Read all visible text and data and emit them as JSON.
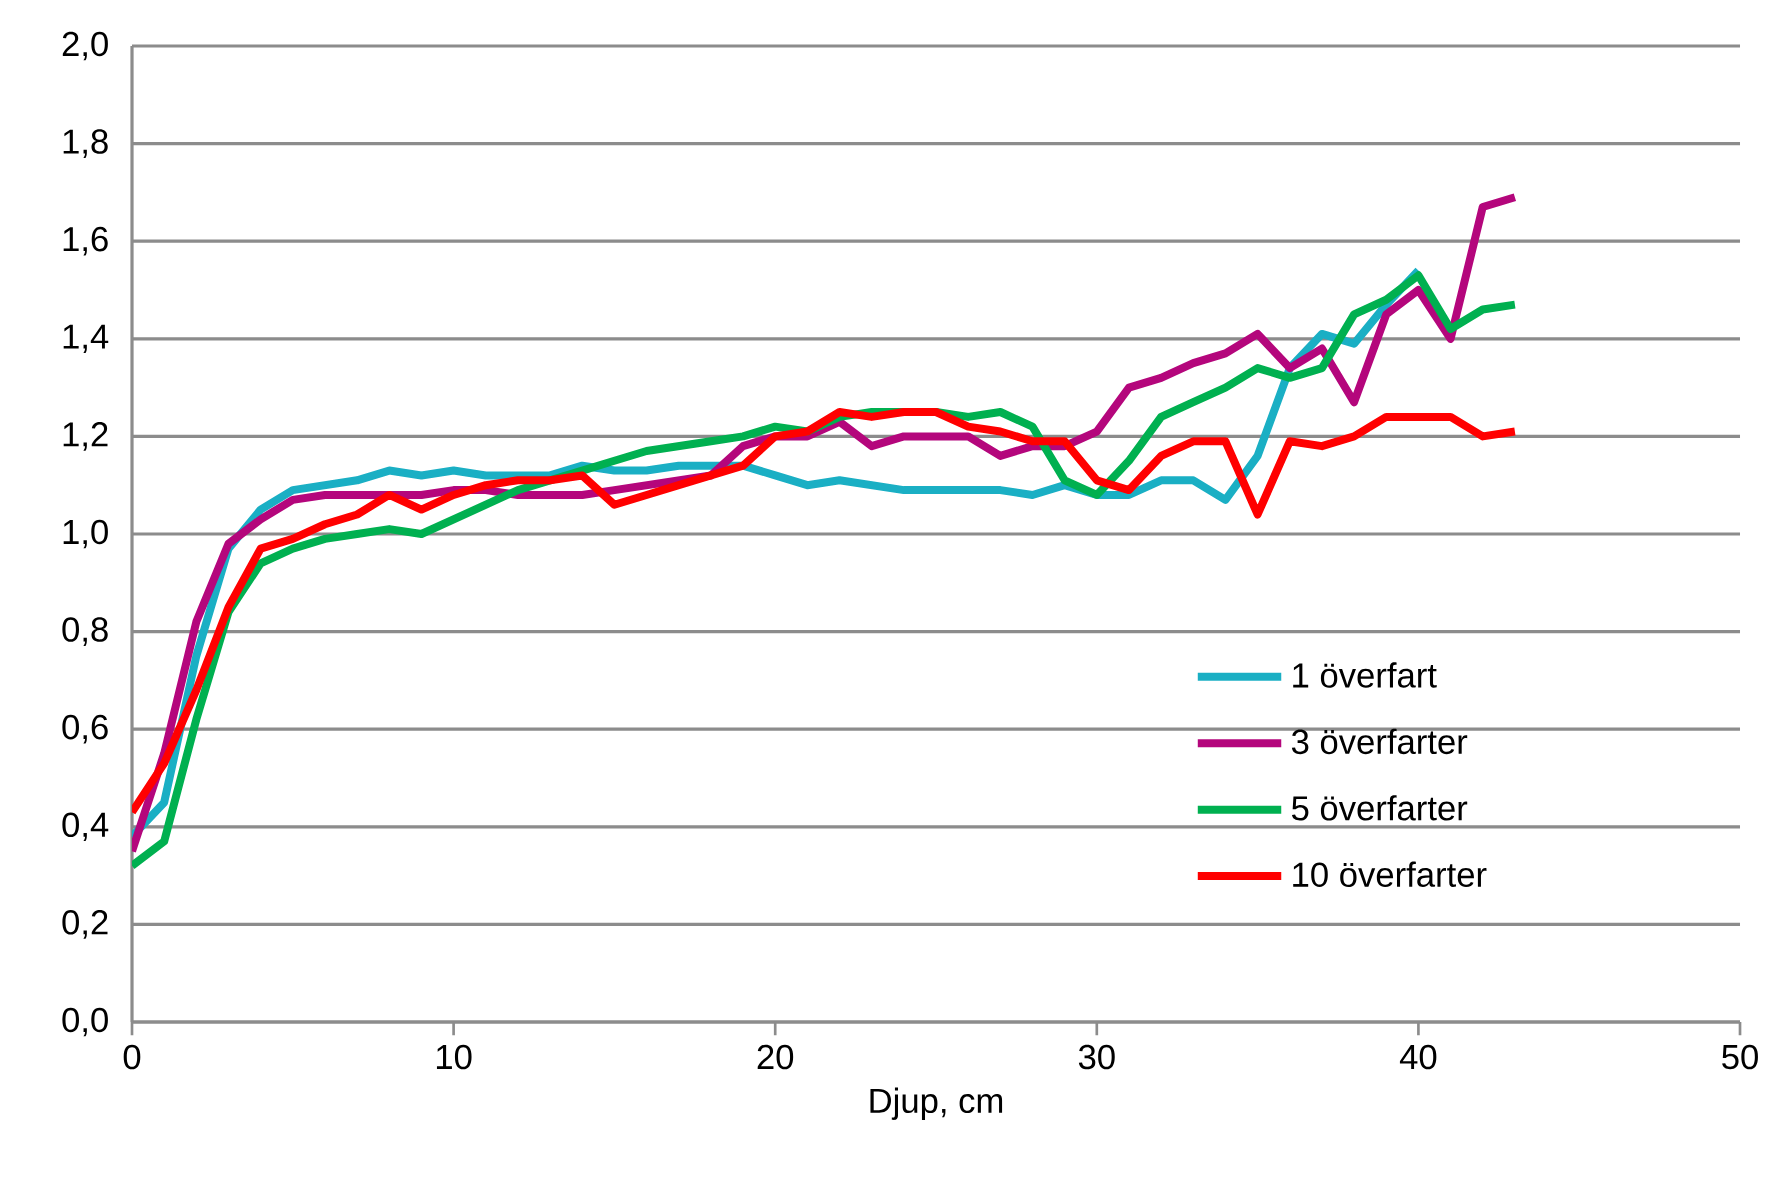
{
  "chart_data": {
    "type": "line",
    "xlabel": "Djup, cm",
    "xlim": [
      0,
      50
    ],
    "xticks": [
      0,
      10,
      20,
      30,
      40,
      50
    ],
    "ylim": [
      0,
      2
    ],
    "yticks": [
      {
        "value": 0,
        "label": "0,0"
      },
      {
        "value": 0.2,
        "label": "0,2"
      },
      {
        "value": 0.4,
        "label": "0,4"
      },
      {
        "value": 0.6,
        "label": "0,6"
      },
      {
        "value": 0.8,
        "label": "0,8"
      },
      {
        "value": 1.0,
        "label": "1,0"
      },
      {
        "value": 1.2,
        "label": "1,2"
      },
      {
        "value": 1.4,
        "label": "1,4"
      },
      {
        "value": 1.6,
        "label": "1,6"
      },
      {
        "value": 1.8,
        "label": "1,8"
      },
      {
        "value": 2.0,
        "label": "2,0"
      }
    ],
    "grid": "y",
    "legend": "right",
    "marker": "none",
    "line_style": "solid",
    "x": [
      0,
      1,
      2,
      3,
      4,
      5,
      6,
      7,
      8,
      9,
      10,
      11,
      12,
      13,
      14,
      15,
      16,
      17,
      18,
      19,
      20,
      21,
      22,
      23,
      24,
      25,
      26,
      27,
      28,
      29,
      30,
      31,
      32,
      33,
      34,
      35,
      36,
      37,
      38,
      39,
      40,
      41,
      42,
      43
    ],
    "series": [
      {
        "name": "1 överfart",
        "color": "#1aafc4",
        "values": [
          0.38,
          0.45,
          0.75,
          0.97,
          1.05,
          1.09,
          1.1,
          1.11,
          1.13,
          1.12,
          1.13,
          1.12,
          1.12,
          1.12,
          1.14,
          1.13,
          1.13,
          1.14,
          1.14,
          1.14,
          1.12,
          1.1,
          1.11,
          1.1,
          1.09,
          1.09,
          1.09,
          1.09,
          1.08,
          1.1,
          1.08,
          1.08,
          1.11,
          1.11,
          1.07,
          1.16,
          1.34,
          1.41,
          1.39,
          1.47,
          1.54,
          null,
          null,
          null
        ]
      },
      {
        "name": "3 överfarter",
        "color": "#b4067c",
        "values": [
          0.35,
          0.55,
          0.82,
          0.98,
          1.03,
          1.07,
          1.08,
          1.08,
          1.08,
          1.08,
          1.09,
          1.09,
          1.08,
          1.08,
          1.08,
          1.09,
          1.1,
          1.11,
          1.12,
          1.18,
          1.2,
          1.2,
          1.23,
          1.18,
          1.2,
          1.2,
          1.2,
          1.16,
          1.18,
          1.18,
          1.21,
          1.3,
          1.32,
          1.35,
          1.37,
          1.41,
          1.34,
          1.38,
          1.27,
          1.45,
          1.5,
          1.4,
          1.67,
          1.69
        ]
      },
      {
        "name": "5 överfarter",
        "color": "#00b050",
        "values": [
          0.32,
          0.37,
          0.62,
          0.84,
          0.94,
          0.97,
          0.99,
          1.0,
          1.01,
          1.0,
          1.03,
          1.06,
          1.09,
          1.11,
          1.13,
          1.15,
          1.17,
          1.18,
          1.19,
          1.2,
          1.22,
          1.21,
          1.24,
          1.25,
          1.25,
          1.25,
          1.24,
          1.25,
          1.22,
          1.11,
          1.08,
          1.15,
          1.24,
          1.27,
          1.3,
          1.34,
          1.32,
          1.34,
          1.45,
          1.48,
          1.53,
          1.42,
          1.46,
          1.47
        ]
      },
      {
        "name": "10 överfarter",
        "color": "#ff0000",
        "values": [
          0.43,
          0.53,
          0.68,
          0.85,
          0.97,
          0.99,
          1.02,
          1.04,
          1.08,
          1.05,
          1.08,
          1.1,
          1.11,
          1.11,
          1.12,
          1.06,
          1.08,
          1.1,
          1.12,
          1.14,
          1.2,
          1.21,
          1.25,
          1.24,
          1.25,
          1.25,
          1.22,
          1.21,
          1.19,
          1.19,
          1.11,
          1.09,
          1.16,
          1.19,
          1.19,
          1.04,
          1.19,
          1.18,
          1.2,
          1.24,
          1.24,
          1.24,
          1.2,
          1.21
        ]
      }
    ]
  }
}
